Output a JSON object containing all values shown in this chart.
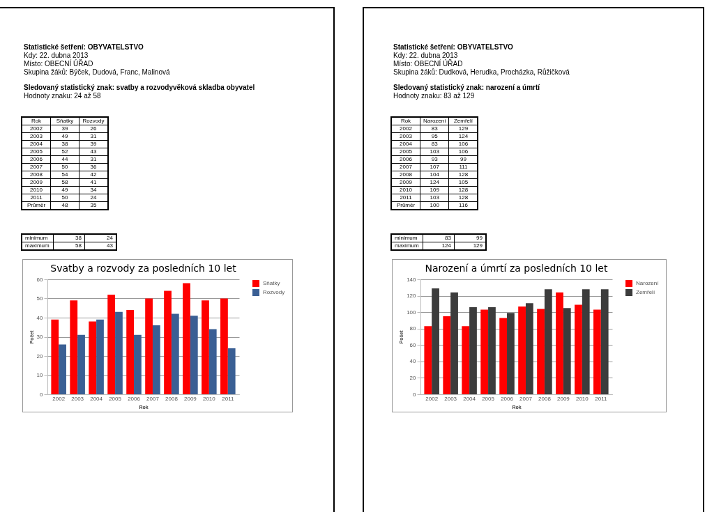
{
  "chart_data": [
    {
      "type": "bar",
      "title": "Svatby a rozvody za posledních 10 let",
      "xlabel": "Rok",
      "ylabel": "Počet",
      "categories": [
        "2002",
        "2003",
        "2004",
        "2005",
        "2006",
        "2007",
        "2008",
        "2009",
        "2010",
        "2011"
      ],
      "series": [
        {
          "name": "Sňatky",
          "color": "#ff0000",
          "values": [
            39,
            49,
            38,
            52,
            44,
            50,
            54,
            58,
            49,
            50
          ]
        },
        {
          "name": "Rozvody",
          "color": "#3a5f94",
          "values": [
            26,
            31,
            39,
            43,
            31,
            36,
            42,
            41,
            34,
            24
          ]
        }
      ],
      "ylim": [
        0,
        60
      ],
      "yticks": [
        0,
        10,
        20,
        30,
        40,
        50,
        60
      ],
      "grid": "y",
      "legend": "right",
      "annotations": [
        "Statistické šetření: OBYVATELSTVO",
        "Kdy: 22. dubna 2013",
        "Místo: OBECNÍ ÚŘAD",
        "Skupina žáků: Býček, Dudová, Franc, Malinová",
        "Sledovaný statistický znak: svatby a rozvodyvěková skladba obyvatel",
        "Hodnoty znaku: 24 až 58",
        "Rok",
        "Sňatky",
        "Rozvody",
        "2002",
        "39",
        "26",
        "2003",
        "49",
        "31",
        "2004",
        "38",
        "39",
        "2005",
        "52",
        "43",
        "2006",
        "44",
        "31",
        "2007",
        "50",
        "36",
        "2008",
        "54",
        "42",
        "2009",
        "58",
        "41",
        "2010",
        "49",
        "34",
        "2011",
        "50",
        "24",
        "Průměr",
        "48",
        "35",
        "minimum",
        "38",
        "24",
        "maximum",
        "58",
        "43"
      ]
    },
    {
      "type": "bar",
      "title": "Narození a úmrtí za posledních 10 let",
      "xlabel": "Rok",
      "ylabel": "Počet",
      "categories": [
        "2002",
        "2003",
        "2004",
        "2005",
        "2006",
        "2007",
        "2008",
        "2009",
        "2010",
        "2011"
      ],
      "series": [
        {
          "name": "Narození",
          "color": "#ff0000",
          "values": [
            83,
            95,
            83,
            103,
            93,
            107,
            104,
            124,
            109,
            103
          ]
        },
        {
          "name": "Zemřelí",
          "color": "#3c3c3c",
          "values": [
            129,
            124,
            106,
            106,
            99,
            111,
            128,
            105,
            128,
            128
          ]
        }
      ],
      "ylim": [
        0,
        140
      ],
      "yticks": [
        0,
        20,
        40,
        60,
        80,
        100,
        120,
        140
      ],
      "grid": "y",
      "legend": "right",
      "annotations": [
        "Statistické šetření: OBYVATELSTVO",
        "Kdy: 22. dubna 2013",
        "Místo: OBECNÍ ÚŘAD",
        "Skupina žáků: Dudková, Herudka, Procházka, Růžičková",
        "Sledovaný statistický znak: narození a úmrtí",
        "Hodnoty znaku: 83 až 129",
        "Rok",
        "Narození",
        "Zemřelí",
        "2002",
        "83",
        "129",
        "2003",
        "95",
        "124",
        "2004",
        "83",
        "106",
        "2005",
        "103",
        "106",
        "2006",
        "93",
        "99",
        "2007",
        "107",
        "111",
        "2008",
        "104",
        "128",
        "2009",
        "124",
        "105",
        "2010",
        "109",
        "128",
        "2011",
        "103",
        "128",
        "Průměr",
        "100",
        "116",
        "minimum",
        "83",
        "99",
        "maximum",
        "124",
        "129"
      ]
    }
  ]
}
